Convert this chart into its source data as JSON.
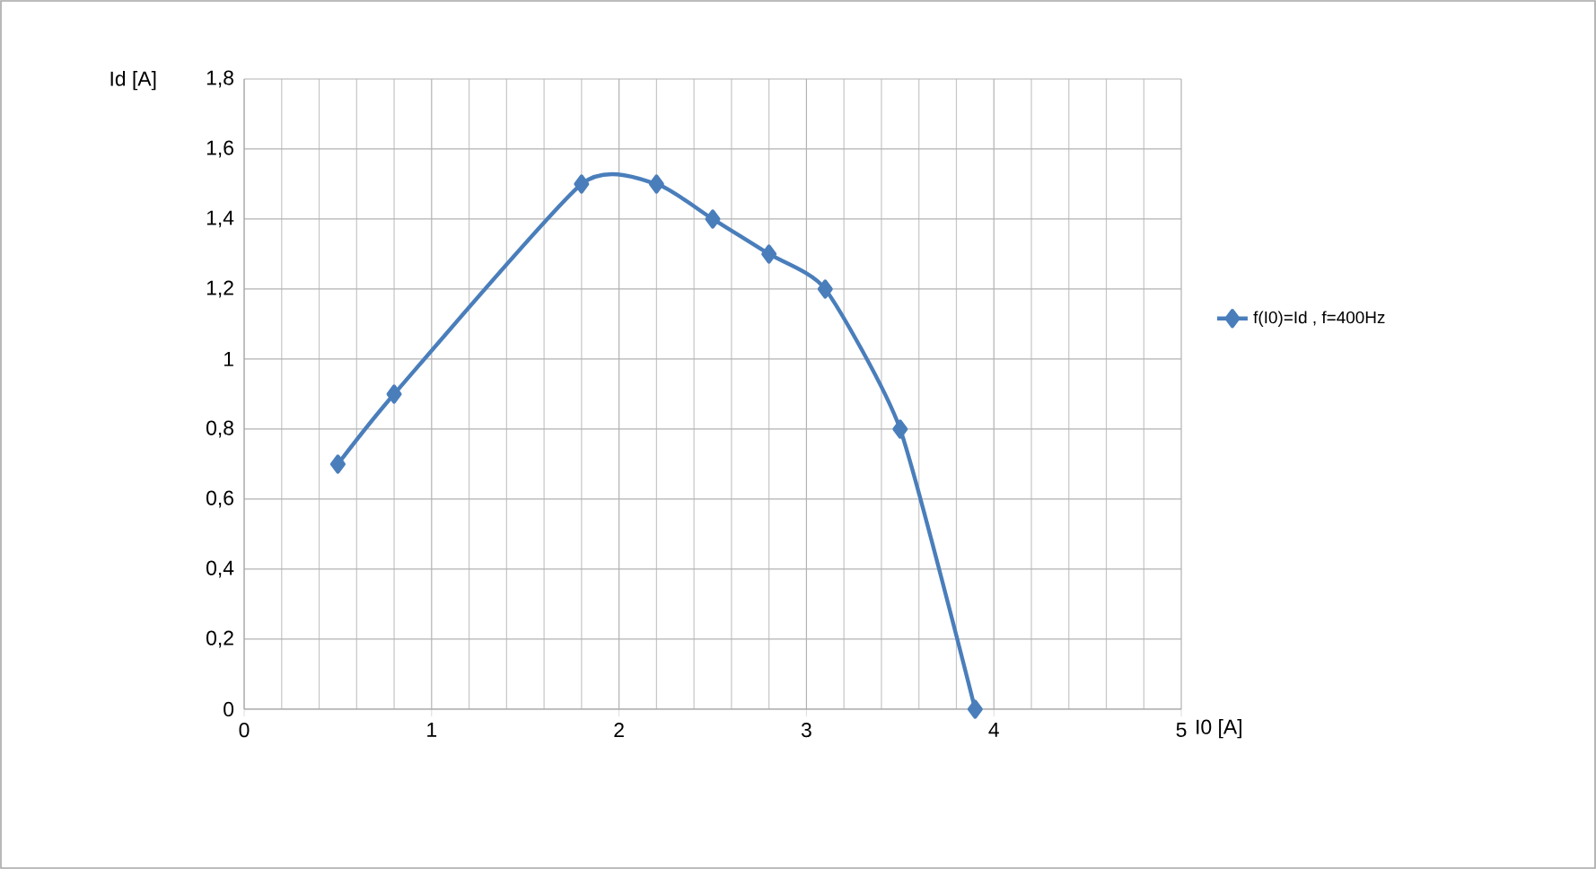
{
  "chart_data": {
    "type": "line",
    "xlabel": "I0 [A]",
    "ylabel": "Id [A]",
    "x": [
      0.5,
      0.8,
      1.8,
      2.2,
      2.5,
      2.8,
      3.1,
      3.5,
      3.9
    ],
    "series": [
      {
        "name": "f(I0)=Id , f=400Hz",
        "color": "#4a7ebb",
        "values": [
          0.7,
          0.9,
          1.5,
          1.5,
          1.4,
          1.3,
          1.2,
          0.8,
          0
        ]
      }
    ],
    "xlim": [
      0,
      5
    ],
    "ylim": [
      0,
      1.8
    ],
    "xticks": [
      0,
      1,
      2,
      3,
      4,
      5
    ],
    "yticks": [
      0,
      {
        "value": 0.2,
        "label": "0,2"
      },
      {
        "value": 0.4,
        "label": "0,4"
      },
      {
        "value": 0.6,
        "label": "0,6"
      },
      {
        "value": 0.8,
        "label": "0,8"
      },
      1,
      {
        "value": 1.2,
        "label": "1,2"
      },
      {
        "value": 1.4,
        "label": "1,4"
      },
      {
        "value": 1.6,
        "label": "1,6"
      },
      {
        "value": 1.8,
        "label": "1,8"
      }
    ],
    "grid": true,
    "legend": "right",
    "marker": "diamond",
    "line_style": "solid"
  }
}
